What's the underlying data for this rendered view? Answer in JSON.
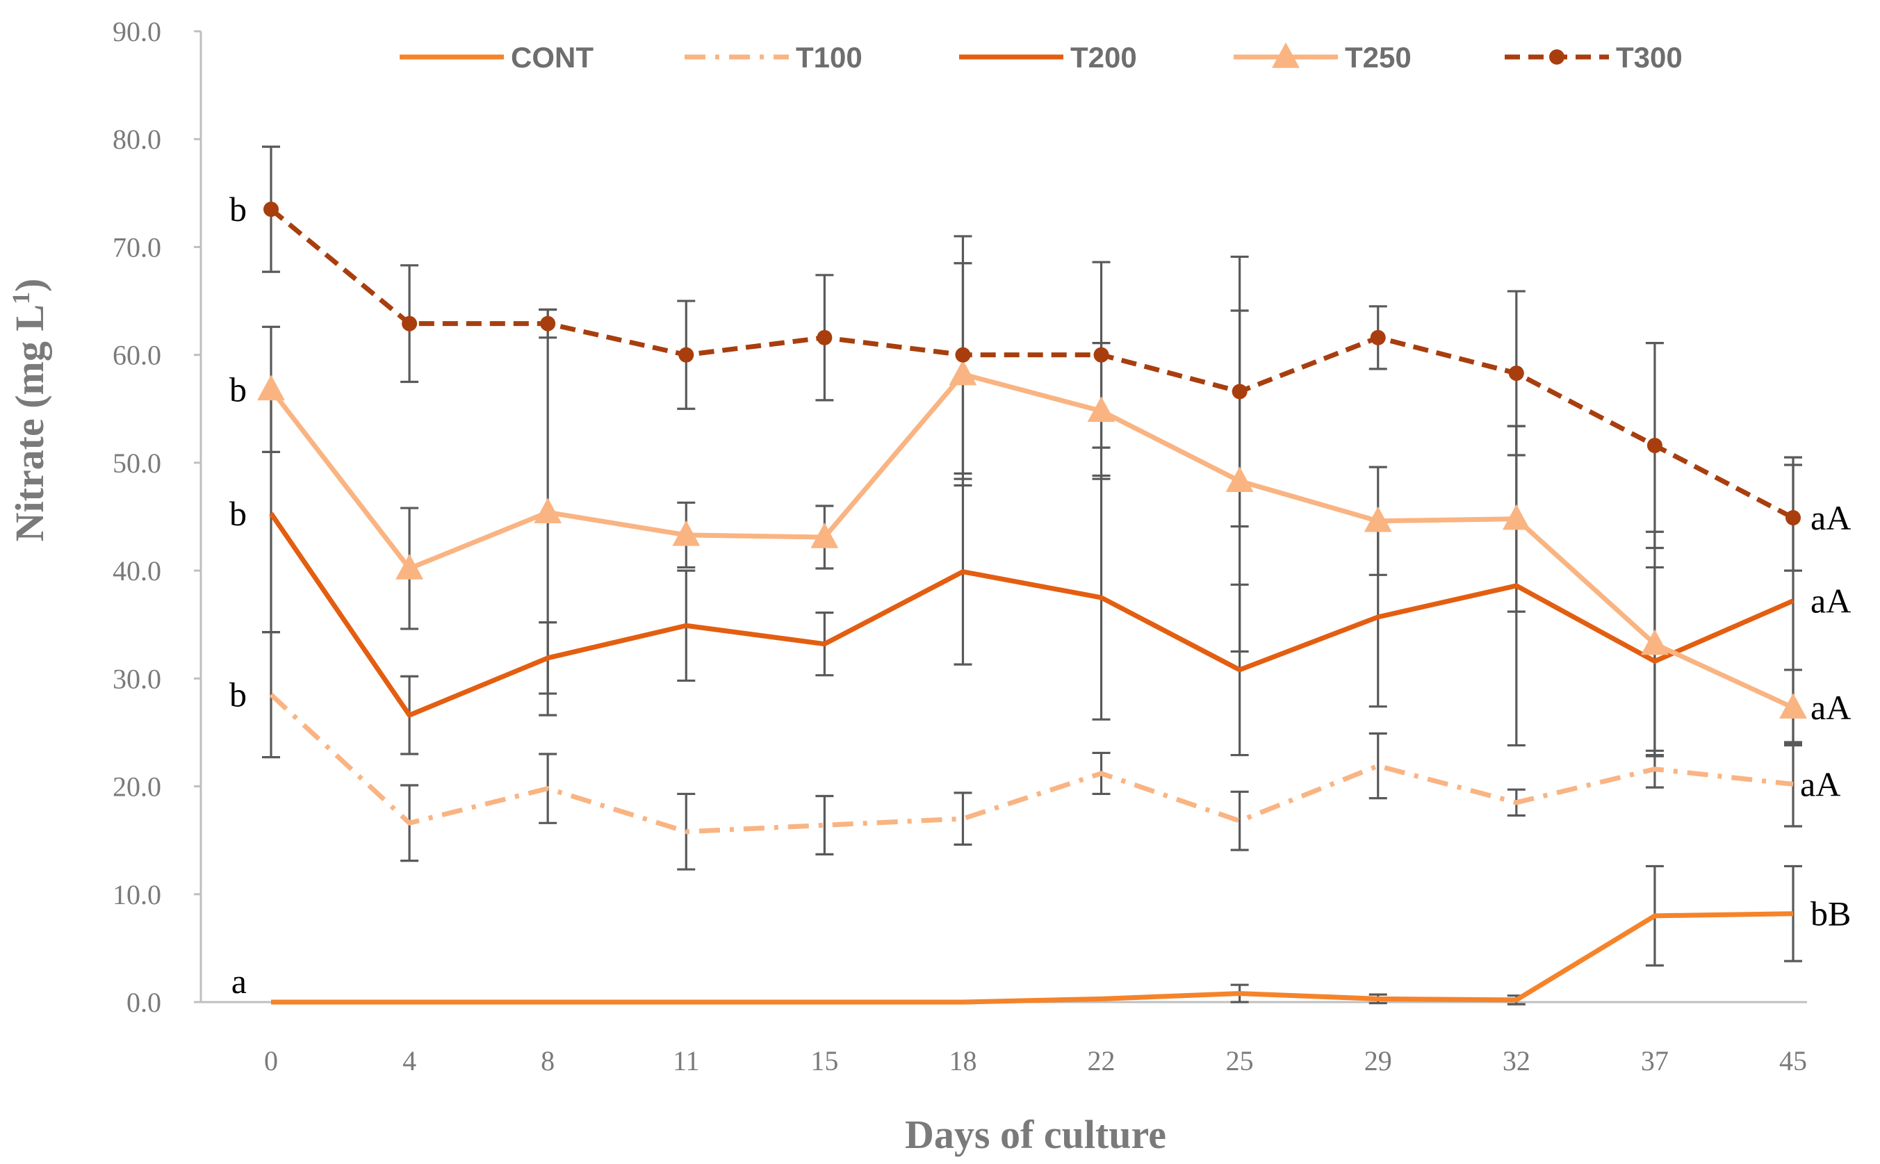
{
  "chart_data": {
    "type": "line",
    "title": "",
    "xlabel": "Days of culture",
    "ylabel_main": "Nitrate (mg L",
    "ylabel_sup": "1",
    "ylabel_end": ")",
    "ylim": [
      0,
      90
    ],
    "yticks": [
      0,
      10,
      20,
      30,
      40,
      50,
      60,
      70,
      80,
      90
    ],
    "ytick_labels": [
      "0.0",
      "10.0",
      "20.0",
      "30.0",
      "40.0",
      "50.0",
      "60.0",
      "70.0",
      "80.0",
      "90.0"
    ],
    "categories": [
      "0",
      "4",
      "8",
      "11",
      "15",
      "18",
      "22",
      "25",
      "29",
      "32",
      "37",
      "45"
    ],
    "grid": false,
    "legend_position": "top",
    "series": [
      {
        "name": "CONT",
        "color": "#F5832A",
        "dash": "solid",
        "marker": "none",
        "values": [
          0,
          0,
          0,
          0,
          0,
          0,
          0.3,
          0.8,
          0.3,
          0.2,
          8.0,
          8.2
        ],
        "errors": [
          0,
          0,
          0,
          0,
          0,
          0,
          0,
          0.8,
          0.4,
          0.4,
          4.6,
          4.4
        ]
      },
      {
        "name": "T100",
        "color": "#F9B482",
        "dash": "dashdot",
        "marker": "none",
        "values": [
          28.5,
          16.6,
          19.8,
          15.8,
          16.4,
          17.0,
          21.2,
          16.8,
          21.9,
          18.5,
          21.6,
          20.2
        ],
        "errors": [
          5.8,
          3.5,
          3.2,
          3.5,
          2.7,
          2.4,
          1.9,
          2.7,
          3.0,
          1.2,
          1.7,
          3.9
        ]
      },
      {
        "name": "T200",
        "color": "#E35E10",
        "dash": "solid",
        "marker": "none",
        "values": [
          45.3,
          26.6,
          31.9,
          34.9,
          33.2,
          39.9,
          37.5,
          30.8,
          35.7,
          38.6,
          31.6,
          37.2
        ],
        "errors": [
          11.0,
          3.6,
          3.3,
          5.1,
          2.9,
          8.6,
          11.3,
          7.9,
          8.3,
          14.8,
          8.7,
          13.3
        ]
      },
      {
        "name": "T250",
        "color": "#F9B482",
        "dash": "solid",
        "marker": "triangle",
        "values": [
          56.8,
          40.2,
          45.4,
          43.3,
          43.1,
          58.2,
          54.8,
          48.3,
          44.6,
          44.8,
          33.2,
          27.3
        ],
        "errors": [
          5.8,
          5.6,
          18.8,
          3.0,
          2.9,
          10.3,
          6.3,
          15.8,
          5.0,
          8.6,
          10.4,
          3.5
        ]
      },
      {
        "name": "T300",
        "color": "#A83E0E",
        "dash": "dashed",
        "marker": "circle",
        "values": [
          73.5,
          62.9,
          62.9,
          60.0,
          61.6,
          60.0,
          60.0,
          56.6,
          61.6,
          58.3,
          51.6,
          44.9
        ],
        "errors": [
          5.8,
          5.4,
          1.3,
          5.0,
          5.8,
          11.0,
          8.6,
          12.5,
          2.9,
          7.6,
          9.5,
          4.9
        ]
      }
    ],
    "annotations": [
      {
        "text": "b",
        "series": "T300",
        "side": "left"
      },
      {
        "text": "b",
        "series": "T250",
        "side": "left"
      },
      {
        "text": "b",
        "series": "T200",
        "side": "left"
      },
      {
        "text": "b",
        "series": "T100",
        "side": "left"
      },
      {
        "text": "a",
        "series": "CONT",
        "side": "left"
      },
      {
        "text": "aA",
        "series": "T300",
        "side": "right"
      },
      {
        "text": "aA",
        "series": "T200",
        "side": "right"
      },
      {
        "text": "aA",
        "series": "T250",
        "side": "right"
      },
      {
        "text": "aA",
        "series": "T100",
        "side": "right"
      },
      {
        "text": "bB",
        "series": "CONT",
        "side": "right"
      }
    ]
  }
}
